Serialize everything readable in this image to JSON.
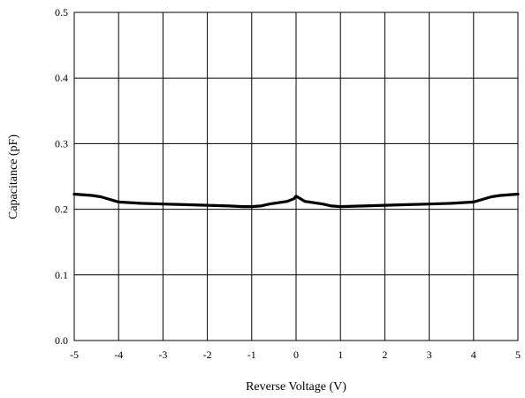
{
  "chart_data": {
    "type": "line",
    "title": "",
    "xlabel": "Reverse Voltage (V)",
    "ylabel": "Capacitance (pF)",
    "xlim": [
      -5,
      5
    ],
    "ylim": [
      0.0,
      0.5
    ],
    "x_ticks": [
      "-5",
      "-4",
      "-3",
      "-2",
      "-1",
      "0",
      "1",
      "2",
      "3",
      "4",
      "5"
    ],
    "y_ticks": [
      "0.0",
      "0.1",
      "0.2",
      "0.3",
      "0.4",
      "0.5"
    ],
    "grid": true,
    "legend": "none",
    "series": [
      {
        "color": "#000000",
        "points": [
          [
            -5.0,
            0.223
          ],
          [
            -4.6,
            0.221
          ],
          [
            -4.4,
            0.219
          ],
          [
            -4.2,
            0.215
          ],
          [
            -4.0,
            0.211
          ],
          [
            -3.5,
            0.209
          ],
          [
            -3.0,
            0.208
          ],
          [
            -2.5,
            0.207
          ],
          [
            -2.0,
            0.206
          ],
          [
            -1.5,
            0.205
          ],
          [
            -1.2,
            0.204
          ],
          [
            -1.0,
            0.204
          ],
          [
            -0.8,
            0.205
          ],
          [
            -0.6,
            0.208
          ],
          [
            -0.2,
            0.212
          ],
          [
            -0.05,
            0.216
          ],
          [
            0.0,
            0.22
          ],
          [
            0.1,
            0.216
          ],
          [
            0.2,
            0.212
          ],
          [
            0.6,
            0.208
          ],
          [
            0.8,
            0.205
          ],
          [
            1.0,
            0.204
          ],
          [
            1.5,
            0.205
          ],
          [
            2.0,
            0.206
          ],
          [
            2.5,
            0.207
          ],
          [
            3.0,
            0.208
          ],
          [
            3.5,
            0.209
          ],
          [
            4.0,
            0.211
          ],
          [
            4.2,
            0.215
          ],
          [
            4.4,
            0.219
          ],
          [
            4.6,
            0.221
          ],
          [
            5.0,
            0.223
          ]
        ]
      }
    ]
  }
}
